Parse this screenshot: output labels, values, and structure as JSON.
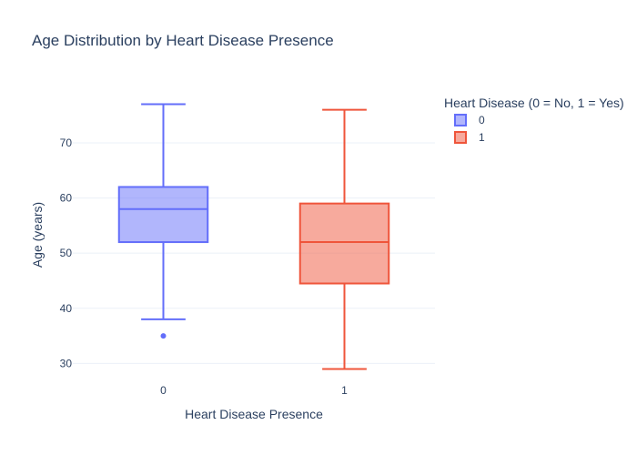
{
  "chart_data": {
    "type": "box",
    "title": "Age Distribution by Heart Disease Presence",
    "xlabel": "Heart Disease Presence",
    "ylabel": "Age (years)",
    "categories": [
      "0",
      "1"
    ],
    "ylim": [
      26.6,
      79.4
    ],
    "yticks": [
      30,
      40,
      50,
      60,
      70
    ],
    "grid": true,
    "legend": {
      "title": "Heart Disease (0 = No, 1 = Yes)",
      "placement": "top-right"
    },
    "series": [
      {
        "name": "0",
        "category": "0",
        "color": "#636efa",
        "fill": "#636efa",
        "min": 38,
        "q1": 52,
        "median": 58,
        "q3": 62,
        "max": 77,
        "outliers": [
          35
        ]
      },
      {
        "name": "1",
        "category": "1",
        "color": "#ef553b",
        "fill": "#ef553b",
        "min": 29,
        "q1": 44.5,
        "median": 52,
        "q3": 59,
        "max": 76,
        "outliers": []
      }
    ]
  }
}
